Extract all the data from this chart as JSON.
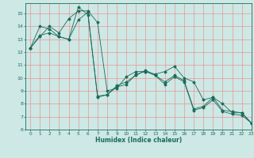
{
  "xlabel": "Humidex (Indice chaleur)",
  "background_color": "#cde8e5",
  "grid_color": "#f08080",
  "line_color": "#1a6b5a",
  "xlim": [
    -0.5,
    23
  ],
  "ylim": [
    6,
    15.8
  ],
  "xticks": [
    0,
    1,
    2,
    3,
    4,
    5,
    6,
    7,
    8,
    9,
    10,
    11,
    12,
    13,
    14,
    15,
    16,
    17,
    18,
    19,
    20,
    21,
    22,
    23
  ],
  "yticks": [
    6,
    7,
    8,
    9,
    10,
    11,
    12,
    13,
    14,
    15
  ],
  "series": [
    {
      "x": [
        0,
        1,
        2,
        3,
        4,
        5,
        6,
        7,
        8,
        9,
        10,
        11,
        12,
        13,
        14,
        15,
        16,
        17,
        18,
        19,
        20,
        21,
        22,
        23
      ],
      "y": [
        12.3,
        13.2,
        14.0,
        13.5,
        14.6,
        15.2,
        15.2,
        14.3,
        9.0,
        9.2,
        10.1,
        10.5,
        10.5,
        10.3,
        10.5,
        10.9,
        10.0,
        9.7,
        8.3,
        8.5,
        8.0,
        7.3,
        7.3,
        6.5
      ]
    },
    {
      "x": [
        0,
        1,
        2,
        3,
        4,
        5,
        6,
        7,
        8,
        9,
        10,
        11,
        12,
        13,
        14,
        15,
        16,
        17,
        18,
        19,
        20,
        21,
        22,
        23
      ],
      "y": [
        12.3,
        14.0,
        13.8,
        13.2,
        13.0,
        15.5,
        14.9,
        8.6,
        8.7,
        9.4,
        9.7,
        10.2,
        10.6,
        10.2,
        9.7,
        10.2,
        9.8,
        7.6,
        7.8,
        8.5,
        7.5,
        7.4,
        7.3,
        6.5
      ]
    },
    {
      "x": [
        0,
        1,
        2,
        3,
        4,
        5,
        6,
        7,
        8,
        9,
        10,
        11,
        12,
        13,
        14,
        15,
        16,
        17,
        18,
        19,
        20,
        21,
        22,
        23
      ],
      "y": [
        12.3,
        13.3,
        13.5,
        13.2,
        13.0,
        14.5,
        15.1,
        8.5,
        8.7,
        9.3,
        9.5,
        10.3,
        10.5,
        10.2,
        9.5,
        10.1,
        9.7,
        7.5,
        7.7,
        8.3,
        7.4,
        7.2,
        7.1,
        6.5
      ]
    }
  ]
}
